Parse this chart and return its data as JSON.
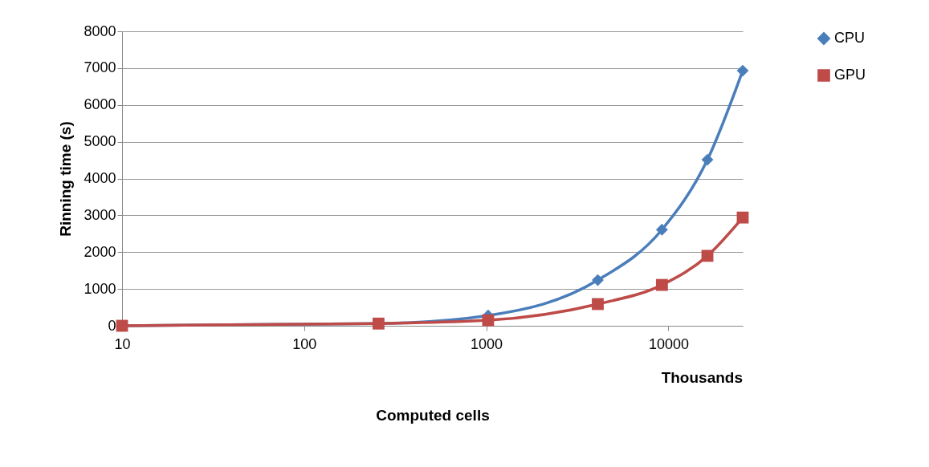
{
  "chart_data": {
    "type": "line",
    "xlabel": "Computed cells",
    "ylabel": "Rinning time (s)",
    "annotations": [
      "Thousands"
    ],
    "x": [
      10,
      256,
      1024,
      4096,
      9216,
      16384,
      25600
    ],
    "series": [
      {
        "name": "CPU",
        "color": "#4a7ebb",
        "marker": "diamond",
        "values": [
          0,
          60,
          280,
          1240,
          2610,
          4510,
          6930
        ]
      },
      {
        "name": "GPU",
        "color": "#be4b48",
        "marker": "square",
        "values": [
          0,
          60,
          150,
          590,
          1110,
          1900,
          2940
        ]
      }
    ],
    "log": "x",
    "xlim": [
      10,
      25600
    ],
    "xticks": [
      10,
      100,
      1000,
      10000
    ],
    "ylim": [
      0,
      8000
    ],
    "yticks": [
      0,
      1000,
      2000,
      3000,
      4000,
      5000,
      6000,
      7000,
      8000
    ],
    "grid": "y",
    "legend": "right",
    "line_style": "solid"
  }
}
